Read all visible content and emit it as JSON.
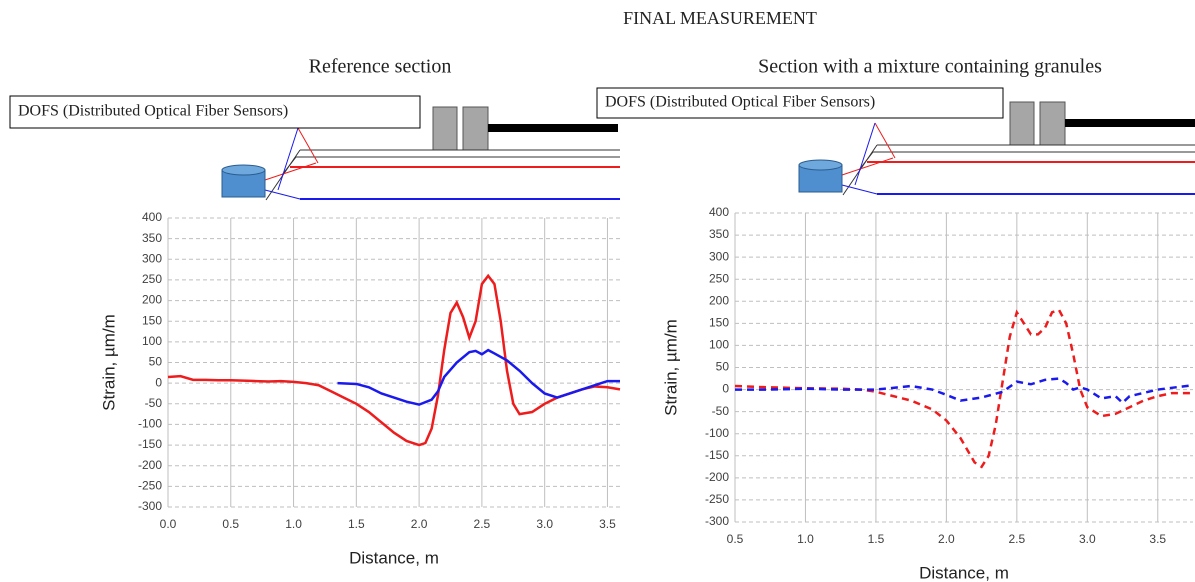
{
  "title": "FINAL MEASUREMENT",
  "chart_data": [
    {
      "type": "line",
      "title": "Reference section",
      "annotation": "DOFS (Distributed Optical Fiber Sensors)",
      "xlabel": "Distance, m",
      "ylabel": "Strain, µm/m",
      "xlim": [
        0,
        3.6
      ],
      "ylim": [
        -300,
        400
      ],
      "xticks": [
        {
          "value": 0,
          "label": "0.0"
        },
        0.5,
        {
          "value": 1,
          "label": "1.0"
        },
        1.5,
        {
          "value": 2,
          "label": "2.0"
        },
        2.5,
        {
          "value": 3,
          "label": "3.0"
        },
        3.5
      ],
      "yticks": [
        -300,
        -250,
        -200,
        -150,
        -100,
        -50,
        0,
        50,
        100,
        150,
        200,
        250,
        300,
        350,
        400
      ],
      "grid": true,
      "series": [
        {
          "color": "#ee1c1c",
          "dashed": false,
          "x": [
            0,
            0.1,
            0.2,
            0.3,
            0.4,
            0.5,
            0.6,
            0.7,
            0.8,
            0.9,
            1.0,
            1.1,
            1.2,
            1.3,
            1.4,
            1.5,
            1.6,
            1.7,
            1.8,
            1.9,
            2.0,
            2.05,
            2.1,
            2.15,
            2.2,
            2.25,
            2.3,
            2.35,
            2.4,
            2.45,
            2.5,
            2.55,
            2.6,
            2.65,
            2.7,
            2.75,
            2.8,
            2.9,
            3.0,
            3.1,
            3.2,
            3.3,
            3.4,
            3.5,
            3.6
          ],
          "values": [
            15,
            17,
            8,
            8,
            7,
            7,
            6,
            5,
            4,
            5,
            3,
            0,
            -5,
            -20,
            -35,
            -50,
            -70,
            -95,
            -120,
            -140,
            -150,
            -145,
            -110,
            -30,
            80,
            170,
            195,
            160,
            110,
            150,
            240,
            260,
            240,
            150,
            30,
            -50,
            -75,
            -70,
            -50,
            -35,
            -25,
            -15,
            -8,
            -10,
            -15
          ]
        },
        {
          "color": "#1a1aee",
          "dashed": false,
          "x": [
            1.35,
            1.5,
            1.6,
            1.7,
            1.8,
            1.9,
            2.0,
            2.1,
            2.15,
            2.2,
            2.3,
            2.4,
            2.45,
            2.5,
            2.55,
            2.6,
            2.7,
            2.8,
            2.9,
            3.0,
            3.1,
            3.2,
            3.3,
            3.4,
            3.5,
            3.6
          ],
          "values": [
            0,
            -2,
            -10,
            -25,
            -35,
            -45,
            -52,
            -40,
            -20,
            15,
            50,
            75,
            78,
            70,
            80,
            72,
            55,
            30,
            0,
            -25,
            -35,
            -25,
            -15,
            -5,
            5,
            5
          ]
        }
      ]
    },
    {
      "type": "line",
      "title": "Section with a mixture containing granules",
      "annotation": "DOFS (Distributed Optical Fiber Sensors)",
      "xlabel": "Distance, m",
      "ylabel": "Strain, µm/m",
      "xlim": [
        0.5,
        3.75
      ],
      "ylim": [
        -300,
        400
      ],
      "xticks": [
        0.5,
        {
          "value": 1,
          "label": "1.0"
        },
        1.5,
        {
          "value": 2,
          "label": "2.0"
        },
        2.5,
        {
          "value": 3,
          "label": "3.0"
        },
        3.5
      ],
      "yticks": [
        -300,
        -250,
        -200,
        -150,
        -100,
        -50,
        0,
        50,
        100,
        150,
        200,
        250,
        300,
        350,
        400
      ],
      "grid": true,
      "series": [
        {
          "color": "#ee1c1c",
          "dashed": true,
          "x": [
            0.5,
            0.75,
            1.0,
            1.25,
            1.4,
            1.5,
            1.75,
            1.9,
            2.0,
            2.1,
            2.2,
            2.25,
            2.3,
            2.35,
            2.4,
            2.45,
            2.5,
            2.55,
            2.6,
            2.65,
            2.7,
            2.75,
            2.8,
            2.85,
            2.9,
            2.95,
            3.0,
            3.1,
            3.2,
            3.3,
            3.4,
            3.5,
            3.6,
            3.75
          ],
          "values": [
            8,
            5,
            3,
            2,
            0,
            -5,
            -25,
            -45,
            -70,
            -110,
            -165,
            -175,
            -150,
            -80,
            20,
            120,
            175,
            150,
            125,
            125,
            140,
            175,
            180,
            150,
            80,
            0,
            -40,
            -60,
            -55,
            -40,
            -25,
            -15,
            -8,
            -8
          ]
        },
        {
          "color": "#1a1aee",
          "dashed": true,
          "x": [
            0.5,
            0.75,
            1.0,
            1.25,
            1.5,
            1.75,
            1.9,
            2.0,
            2.1,
            2.25,
            2.4,
            2.5,
            2.6,
            2.7,
            2.8,
            2.85,
            2.9,
            2.95,
            3.0,
            3.1,
            3.2,
            3.25,
            3.3,
            3.5,
            3.75
          ],
          "values": [
            0,
            0,
            2,
            0,
            0,
            8,
            0,
            -12,
            -25,
            -18,
            -5,
            18,
            12,
            22,
            25,
            15,
            0,
            5,
            0,
            -20,
            -15,
            -30,
            -15,
            0,
            10
          ]
        }
      ]
    }
  ]
}
